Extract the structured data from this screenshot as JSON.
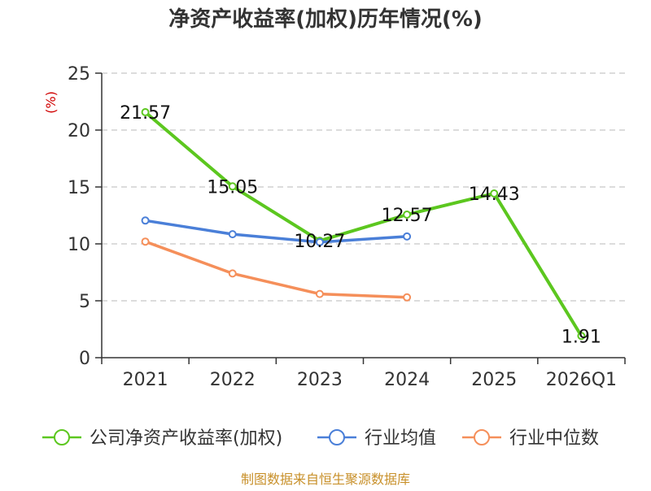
{
  "chart_data": {
    "type": "line",
    "title": "净资产收益率(加权)历年情况(%)",
    "ylabel": "(%)",
    "xlabel": "",
    "categories": [
      "2021",
      "2022",
      "2023",
      "2024",
      "2025",
      "2026Q1"
    ],
    "ylim": [
      0,
      25
    ],
    "yticks": [
      0,
      5,
      10,
      15,
      20,
      25
    ],
    "grid": true,
    "legend_position": "bottom",
    "series": [
      {
        "name": "公司净资产收益率(加权)",
        "color": "#5cc71f",
        "values": [
          21.57,
          15.05,
          10.27,
          12.57,
          14.43,
          1.91
        ],
        "show_labels": true
      },
      {
        "name": "行业均值",
        "color": "#4a7fd8",
        "values": [
          12.05,
          10.85,
          10.15,
          10.65,
          null,
          null
        ],
        "show_labels": false
      },
      {
        "name": "行业中位数",
        "color": "#f58f5a",
        "values": [
          10.2,
          7.4,
          5.6,
          5.3,
          null,
          null
        ],
        "show_labels": false
      }
    ],
    "source": "制图数据来自恒生聚源数据库"
  }
}
